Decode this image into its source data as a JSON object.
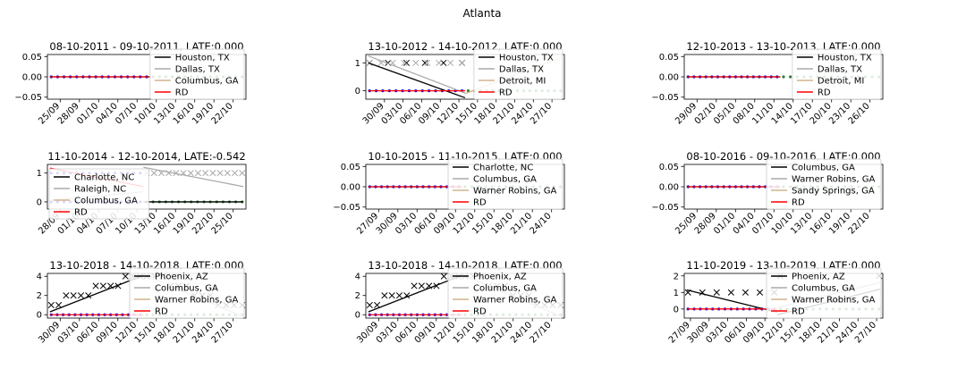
{
  "figure": {
    "title": "Atlanta"
  },
  "colors": {
    "black": "#000000",
    "gray": "#aaaaaa",
    "tan": "#d2b48c",
    "red": "#ff0000",
    "blue": "#0000ff",
    "darkgreen": "#2e7d32"
  },
  "chart_data": [
    {
      "type": "scatter",
      "title": "08-10-2011 - 09-10-2011, LATE:0.000",
      "xtick_labels": [
        "25/09",
        "28/09",
        "01/10",
        "04/10",
        "07/10",
        "10/10",
        "13/10",
        "16/10",
        "19/10",
        "22/10"
      ],
      "ylim": [
        -0.055,
        0.055
      ],
      "ytick_values": [
        -0.05,
        0.0,
        0.05
      ],
      "ytick_labels": [
        "−0.05",
        "0.00",
        "0.05"
      ],
      "legend": [
        "Houston, TX",
        "Dallas, TX",
        "Columbus, GA",
        "RD"
      ],
      "x_range": [
        "23/09",
        "24/10"
      ],
      "cutoff": "09/10",
      "pre_series": [
        {
          "color": "blue",
          "values": [
            0,
            0,
            0,
            0,
            0,
            0,
            0,
            0,
            0,
            0,
            0,
            0,
            0,
            0,
            0,
            0
          ]
        }
      ],
      "post_series": [
        {
          "color": "darkgreen",
          "values": [
            0,
            0,
            0,
            0,
            0,
            0,
            0,
            0,
            0,
            0,
            0,
            0,
            0,
            0,
            0
          ]
        }
      ],
      "fit_lines": [
        {
          "color": "black",
          "start": 0,
          "end": 0
        },
        {
          "color": "red",
          "start": 0,
          "end": 0
        }
      ]
    },
    {
      "type": "scatter",
      "title": "13-10-2012 - 14-10-2012, LATE:0.000",
      "xtick_labels": [
        "30/09",
        "03/10",
        "06/10",
        "09/10",
        "12/10",
        "15/10",
        "18/10",
        "21/10",
        "24/10",
        "27/10"
      ],
      "ylim": [
        -0.3,
        1.3
      ],
      "ytick_values": [
        0,
        1
      ],
      "ytick_labels": [
        "0",
        "1"
      ],
      "legend": [
        "Houston, TX",
        "Dallas, TX",
        "Detroit, MI",
        "RD"
      ],
      "x_range": [
        "27/09",
        "29/10"
      ],
      "cutoff": "13/10",
      "pre_series": [
        {
          "color": "black",
          "marker": "x",
          "values": [
            1,
            1,
            1,
            1,
            1,
            1
          ]
        },
        {
          "color": "gray",
          "marker": "x",
          "values": [
            1,
            1,
            1,
            1,
            1,
            1,
            1,
            1,
            1
          ]
        },
        {
          "color": "blue",
          "values": [
            0,
            0,
            0,
            0,
            0,
            0,
            0,
            0,
            0,
            0,
            0,
            0,
            0,
            0,
            0
          ]
        }
      ],
      "post_series": [
        {
          "color": "darkgreen",
          "values": [
            0,
            0,
            0,
            0,
            0,
            0,
            0,
            0,
            0,
            0,
            0,
            0,
            0,
            0,
            0,
            0
          ]
        }
      ],
      "fit_lines": [
        {
          "color": "black",
          "start": 1.0,
          "end": -0.25
        },
        {
          "color": "gray",
          "start": 1.25,
          "end": -0.08
        },
        {
          "color": "tan",
          "start": -0.1,
          "end": 1.2,
          "post": true
        },
        {
          "color": "red",
          "start": 0,
          "end": 0
        }
      ]
    },
    {
      "type": "scatter",
      "title": "12-10-2013 - 13-10-2013, LATE:0.000",
      "xtick_labels": [
        "29/09",
        "02/10",
        "05/10",
        "08/10",
        "11/10",
        "14/10",
        "17/10",
        "20/10",
        "23/10",
        "26/10"
      ],
      "ylim": [
        -0.055,
        0.055
      ],
      "ytick_values": [
        -0.05,
        0.0,
        0.05
      ],
      "ytick_labels": [
        "−0.05",
        "0.00",
        "0.05"
      ],
      "legend": [
        "Houston, TX",
        "Dallas, TX",
        "Detroit, MI",
        "RD"
      ],
      "x_range": [
        "27/09",
        "28/10"
      ],
      "cutoff": "12/10",
      "pre_series": [
        {
          "color": "blue",
          "values": [
            0,
            0,
            0,
            0,
            0,
            0,
            0,
            0,
            0,
            0,
            0,
            0,
            0,
            0,
            0,
            0
          ]
        }
      ],
      "post_series": [
        {
          "color": "darkgreen",
          "values": [
            0,
            0,
            0,
            0,
            0,
            0,
            0,
            0,
            0,
            0,
            0,
            0,
            0,
            0,
            0
          ]
        }
      ],
      "fit_lines": [
        {
          "color": "black",
          "start": 0,
          "end": 0
        },
        {
          "color": "red",
          "start": 0,
          "end": 0
        }
      ]
    },
    {
      "type": "scatter",
      "title": "11-10-2014 - 12-10-2014, LATE:-0.542",
      "xtick_labels": [
        "28/09",
        "01/10",
        "04/10",
        "07/10",
        "10/10",
        "13/10",
        "16/10",
        "19/10",
        "22/10",
        "25/10"
      ],
      "ylim": [
        -0.25,
        1.3
      ],
      "ytick_values": [
        0,
        1
      ],
      "ytick_labels": [
        "0",
        "1"
      ],
      "legend": [
        "Charlotte, NC",
        "Raleigh, NC",
        "Columbus, GA",
        "RD"
      ],
      "x_range": [
        "26/09",
        "27/10"
      ],
      "cutoff": "11/10",
      "pre_series": [
        {
          "color": "blue",
          "values": [
            1,
            1,
            1,
            1,
            1,
            1,
            1,
            1,
            1,
            1,
            1,
            1,
            1,
            1,
            1
          ]
        },
        {
          "color": "blue",
          "values": [
            0,
            0,
            0,
            0,
            0,
            0,
            0,
            0,
            0,
            0,
            0,
            0,
            0,
            0,
            0
          ]
        }
      ],
      "post_series": [
        {
          "color": "gray",
          "marker": "x",
          "values": [
            1,
            1,
            1,
            1,
            1,
            1,
            1,
            1,
            1,
            1,
            1,
            1,
            1,
            1
          ]
        },
        {
          "color": "darkgreen",
          "values": [
            0,
            0,
            0,
            0,
            0,
            0,
            0,
            0,
            0,
            0,
            0,
            0,
            0,
            0,
            0,
            0
          ]
        }
      ],
      "fit_lines": [
        {
          "color": "red",
          "start": 1.17,
          "end": 0.53
        },
        {
          "color": "gray",
          "start": 1.2,
          "end": 0.53,
          "post": true
        },
        {
          "color": "gray",
          "start": 0.05,
          "end": 0.35
        },
        {
          "color": "black",
          "start": 0,
          "end": 0,
          "post": true
        }
      ]
    },
    {
      "type": "scatter",
      "title": "10-10-2015 - 11-10-2015, LATE:0.000",
      "xtick_labels": [
        "27/09",
        "30/09",
        "03/10",
        "06/10",
        "09/10",
        "12/10",
        "15/10",
        "18/10",
        "21/10",
        "24/10"
      ],
      "ylim": [
        -0.055,
        0.055
      ],
      "ytick_values": [
        -0.05,
        0.0,
        0.05
      ],
      "ytick_labels": [
        "−0.05",
        "0.00",
        "0.05"
      ],
      "legend": [
        "Charlotte, NC",
        "Columbus, GA",
        "Warner Robins, GA",
        "RD"
      ],
      "x_range": [
        "25/09",
        "26/10"
      ],
      "cutoff": "10/10",
      "pre_series": [
        {
          "color": "blue",
          "values": [
            0,
            0,
            0,
            0,
            0,
            0,
            0,
            0,
            0,
            0,
            0,
            0,
            0,
            0,
            0,
            0
          ]
        }
      ],
      "post_series": [
        {
          "color": "darkgreen",
          "values": [
            0,
            0,
            0,
            0,
            0,
            0,
            0,
            0,
            0,
            0,
            0,
            0,
            0,
            0,
            0
          ]
        }
      ],
      "fit_lines": [
        {
          "color": "black",
          "start": 0,
          "end": 0
        },
        {
          "color": "red",
          "start": 0,
          "end": 0
        }
      ]
    },
    {
      "type": "scatter",
      "title": "08-10-2016 - 09-10-2016, LATE:0.000",
      "xtick_labels": [
        "25/09",
        "28/09",
        "01/10",
        "04/10",
        "07/10",
        "10/10",
        "13/10",
        "16/10",
        "19/10",
        "22/10"
      ],
      "ylim": [
        -0.055,
        0.055
      ],
      "ytick_values": [
        -0.05,
        0.0,
        0.05
      ],
      "ytick_labels": [
        "−0.05",
        "0.00",
        "0.05"
      ],
      "legend": [
        "Columbus, GA",
        "Warner Robins, GA",
        "Sandy Springs, GA",
        "RD"
      ],
      "x_range": [
        "23/09",
        "24/10"
      ],
      "cutoff": "08/10",
      "pre_series": [
        {
          "color": "blue",
          "values": [
            0,
            0,
            0,
            0,
            0,
            0,
            0,
            0,
            0,
            0,
            0,
            0,
            0,
            0,
            0,
            0
          ]
        }
      ],
      "post_series": [
        {
          "color": "darkgreen",
          "values": [
            0,
            0,
            0,
            0,
            0,
            0,
            0,
            0,
            0,
            0,
            0,
            0,
            0,
            0,
            0
          ]
        }
      ],
      "fit_lines": [
        {
          "color": "black",
          "start": 0,
          "end": 0
        },
        {
          "color": "red",
          "start": 0,
          "end": 0
        }
      ]
    },
    {
      "type": "scatter",
      "title": "13-10-2018 - 14-10-2018, LATE:0.000",
      "xtick_labels": [
        "30/09",
        "03/10",
        "06/10",
        "09/10",
        "12/10",
        "15/10",
        "18/10",
        "21/10",
        "24/10",
        "27/10"
      ],
      "ylim": [
        -0.35,
        4.3
      ],
      "ytick_values": [
        0,
        2,
        4
      ],
      "ytick_labels": [
        "0",
        "2",
        "4"
      ],
      "legend": [
        "Phoenix, AZ",
        "Columbus, GA",
        "Warner Robins, GA",
        "RD"
      ],
      "x_range": [
        "28/09",
        "29/10"
      ],
      "cutoff": "13/10",
      "pre_series": [
        {
          "color": "black",
          "marker": "x",
          "values": [
            1,
            1,
            2,
            2,
            2,
            2,
            3,
            3,
            3,
            3,
            4,
            4,
            4
          ]
        },
        {
          "color": "blue",
          "values": [
            0,
            0,
            0,
            0,
            0,
            0,
            0,
            0,
            0,
            0,
            0,
            0,
            0,
            0,
            0,
            0
          ]
        }
      ],
      "post_series": [
        {
          "color": "black",
          "marker": "x",
          "values": [
            4,
            4,
            4,
            3,
            3,
            3,
            2,
            2,
            2,
            1,
            1,
            1,
            1
          ]
        },
        {
          "color": "darkgreen",
          "values": [
            0,
            0,
            0,
            0,
            0,
            0,
            0,
            0,
            0,
            0,
            0,
            0,
            0,
            0,
            0,
            0
          ]
        }
      ],
      "fit_lines": [
        {
          "color": "black",
          "start": 0.3,
          "end": 4.1
        },
        {
          "color": "gray",
          "start": 4.2,
          "end": -0.2,
          "post": true
        },
        {
          "color": "red",
          "start": 0,
          "end": 0
        }
      ]
    },
    {
      "type": "scatter",
      "title": "13-10-2018 - 14-10-2018, LATE:0.000",
      "xtick_labels": [
        "30/09",
        "03/10",
        "06/10",
        "09/10",
        "12/10",
        "15/10",
        "18/10",
        "21/10",
        "24/10",
        "27/10"
      ],
      "ylim": [
        -0.35,
        4.3
      ],
      "ytick_values": [
        0,
        2,
        4
      ],
      "ytick_labels": [
        "0",
        "2",
        "4"
      ],
      "legend": [
        "Phoenix, AZ",
        "Columbus, GA",
        "Warner Robins, GA",
        "RD"
      ],
      "x_range": [
        "28/09",
        "29/10"
      ],
      "cutoff": "13/10",
      "pre_series": [
        {
          "color": "black",
          "marker": "x",
          "values": [
            1,
            1,
            2,
            2,
            2,
            2,
            3,
            3,
            3,
            3,
            4,
            4,
            4
          ]
        },
        {
          "color": "blue",
          "values": [
            0,
            0,
            0,
            0,
            0,
            0,
            0,
            0,
            0,
            0,
            0,
            0,
            0,
            0,
            0,
            0
          ]
        }
      ],
      "post_series": [
        {
          "color": "black",
          "marker": "x",
          "values": [
            4,
            4,
            4,
            3,
            3,
            3,
            2,
            2,
            2,
            1,
            1,
            1,
            1
          ]
        },
        {
          "color": "darkgreen",
          "values": [
            0,
            0,
            0,
            0,
            0,
            0,
            0,
            0,
            0,
            0,
            0,
            0,
            0,
            0,
            0,
            0
          ]
        }
      ],
      "fit_lines": [
        {
          "color": "black",
          "start": 0.3,
          "end": 4.1
        },
        {
          "color": "gray",
          "start": 4.2,
          "end": -0.2,
          "post": true
        },
        {
          "color": "red",
          "start": 0,
          "end": 0
        }
      ]
    },
    {
      "type": "scatter",
      "title": "11-10-2019 - 13-10-2019, LATE:0.000",
      "xtick_labels": [
        "27/09",
        "30/09",
        "03/10",
        "06/10",
        "09/10",
        "12/10",
        "15/10",
        "18/10",
        "21/10",
        "24/10",
        "27/10"
      ],
      "ylim": [
        -0.55,
        2.15
      ],
      "ytick_values": [
        0,
        1,
        2
      ],
      "ytick_labels": [
        "0",
        "1",
        "2"
      ],
      "legend": [
        "Phoenix, AZ",
        "Columbus, GA",
        "Warner Robins, GA",
        "RD"
      ],
      "x_range": [
        "26/09",
        "28/10"
      ],
      "cutoff": "11/10",
      "pre_series": [
        {
          "color": "black",
          "marker": "x",
          "values": [
            1,
            1,
            1,
            1,
            1,
            1,
            1
          ]
        },
        {
          "color": "blue",
          "values": [
            0,
            0,
            0,
            0,
            0,
            0,
            0,
            0,
            0,
            0,
            0,
            0,
            0,
            0,
            0
          ]
        }
      ],
      "post_series": [
        {
          "color": "black",
          "marker": "x",
          "values": [
            2,
            2
          ]
        },
        {
          "color": "darkgreen",
          "values": [
            0,
            0,
            0,
            0,
            0,
            0,
            0,
            0,
            0,
            0,
            0,
            0,
            0,
            0,
            0,
            0
          ]
        }
      ],
      "fit_lines": [
        {
          "color": "black",
          "start": 1.15,
          "end": -0.2
        },
        {
          "color": "black",
          "start": -0.35,
          "end": 1.2,
          "post": true
        },
        {
          "color": "gray",
          "start": 0.1,
          "end": 1.6,
          "post": true
        },
        {
          "color": "red",
          "start": 0,
          "end": 0
        }
      ]
    }
  ]
}
